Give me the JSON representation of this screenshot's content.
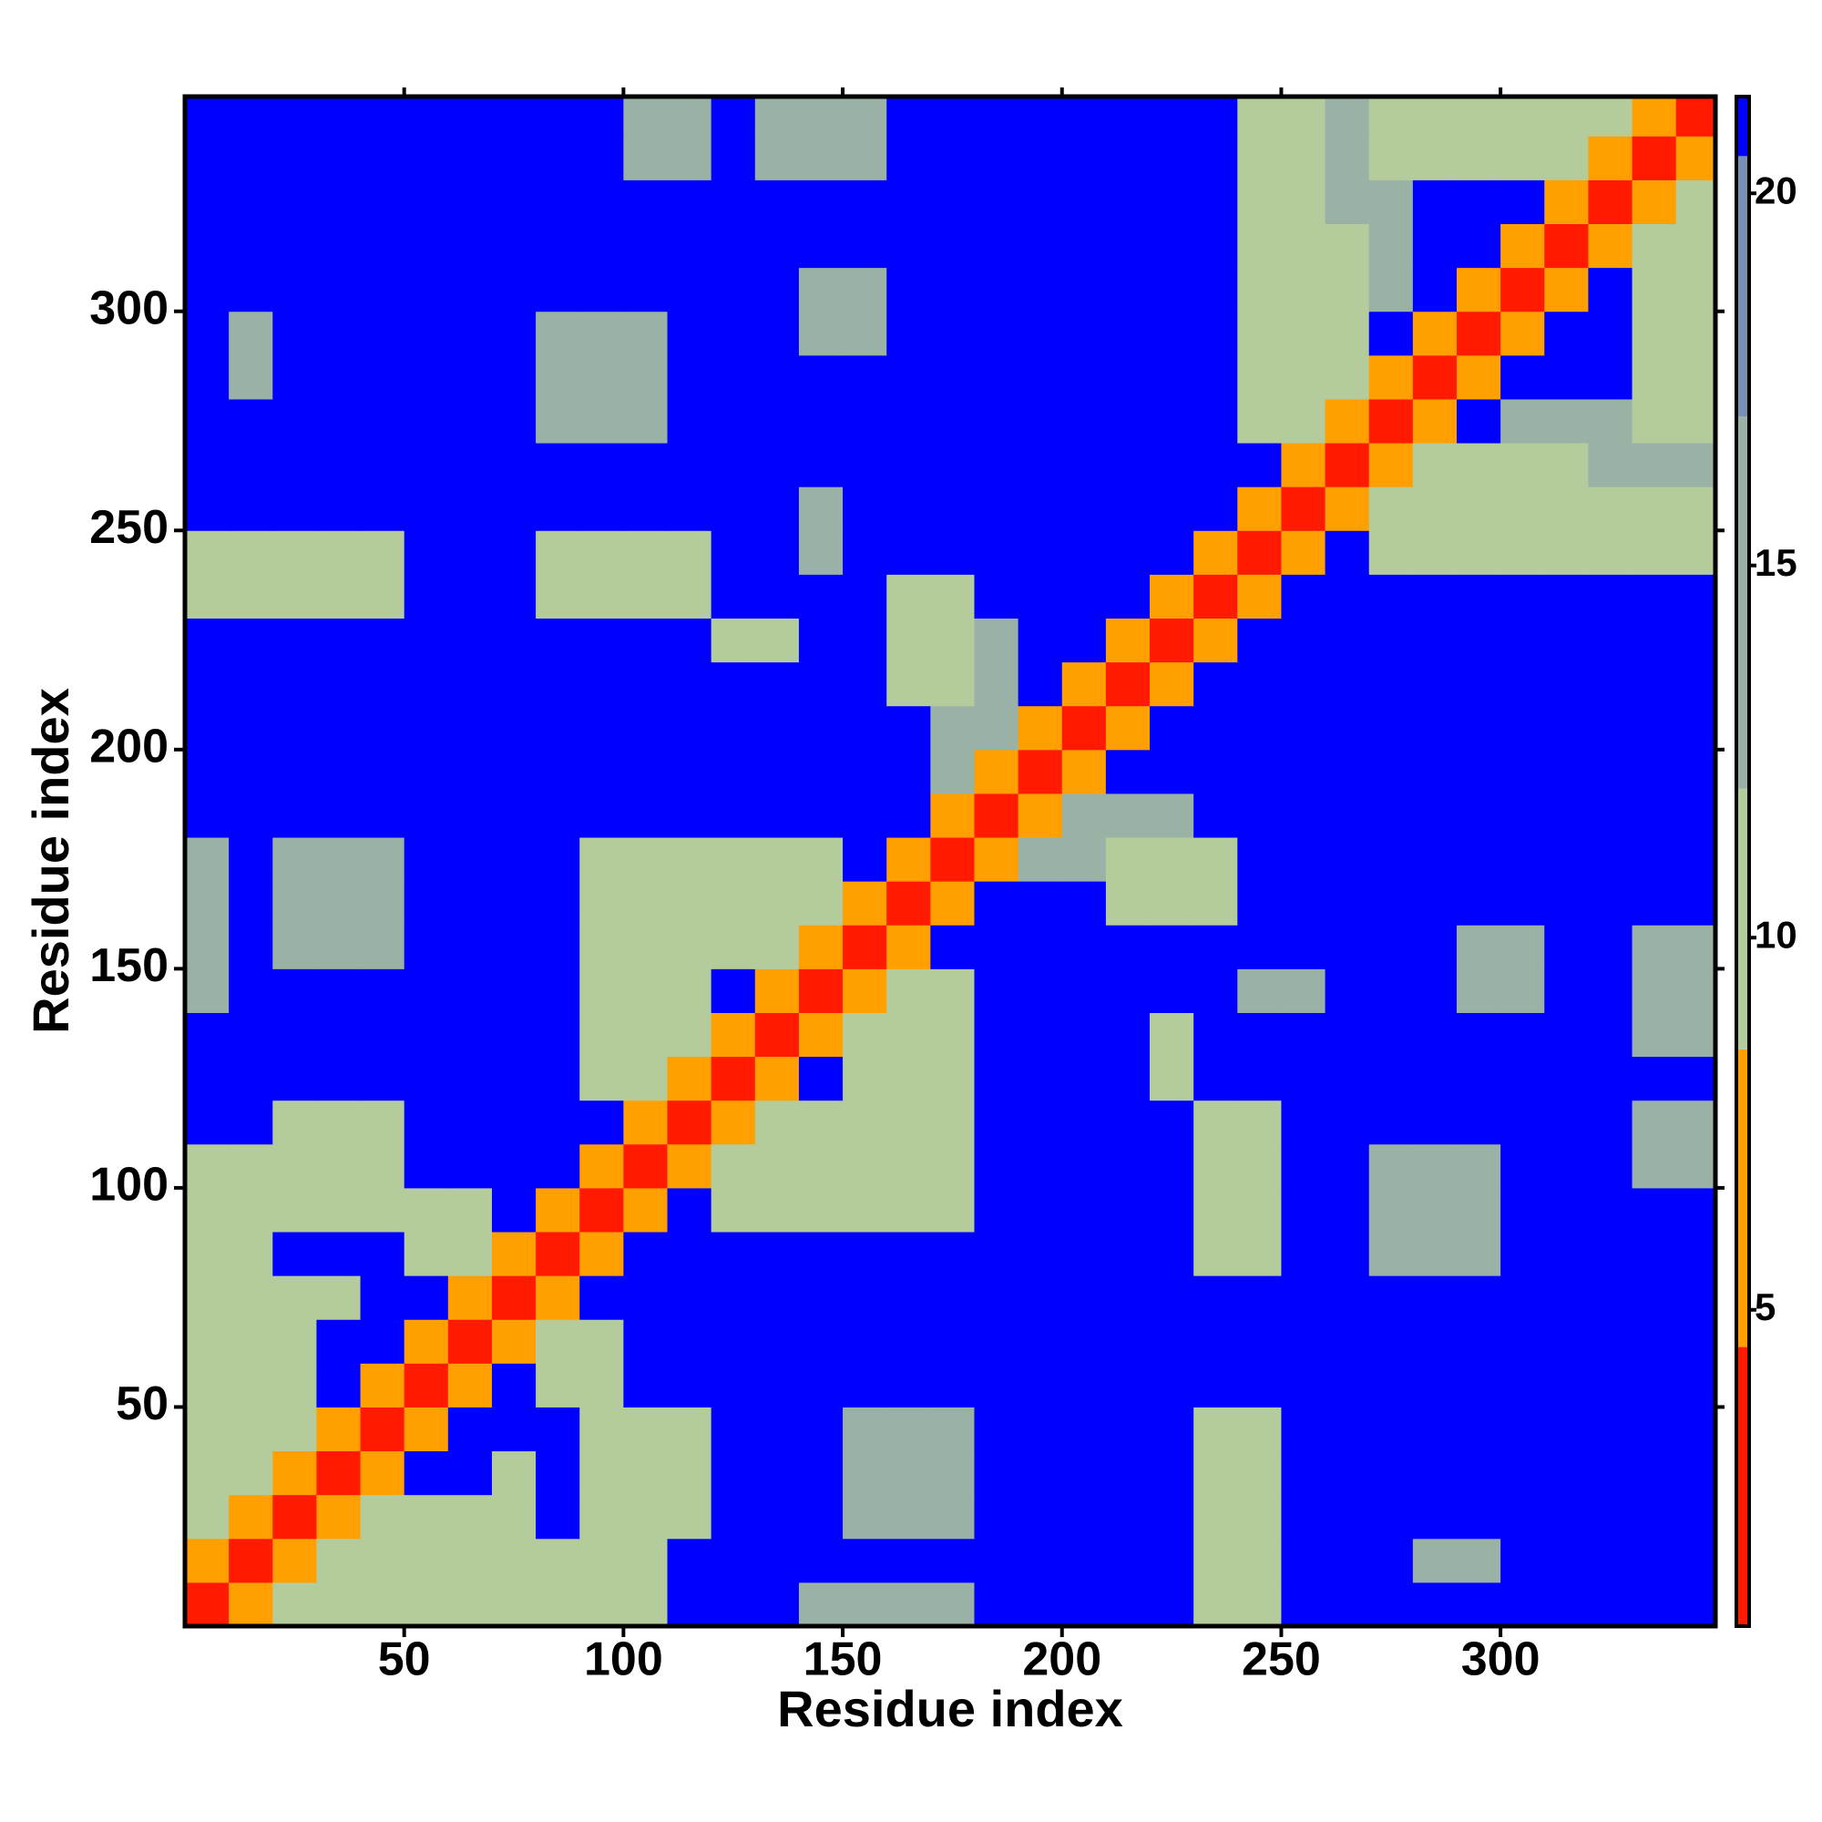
{
  "chart_data": {
    "type": "heatmap",
    "xlabel": "Residue index",
    "ylabel": "Residue index",
    "xlim": [
      0,
      349
    ],
    "ylim": [
      0,
      349
    ],
    "xticks": [
      50,
      100,
      150,
      200,
      250,
      300
    ],
    "yticks": [
      50,
      100,
      150,
      200,
      250,
      300
    ],
    "x": [
      0,
      10,
      20,
      30,
      40,
      50,
      60,
      70,
      80,
      90,
      100,
      110,
      120,
      130,
      140,
      150,
      160,
      170,
      180,
      190,
      200,
      210,
      220,
      230,
      240,
      250,
      260,
      270,
      280,
      290,
      300,
      310,
      320,
      330,
      340
    ],
    "y": [
      0,
      10,
      20,
      30,
      40,
      50,
      60,
      70,
      80,
      90,
      100,
      110,
      120,
      130,
      140,
      150,
      160,
      170,
      180,
      190,
      200,
      210,
      220,
      230,
      240,
      250,
      260,
      270,
      280,
      290,
      300,
      310,
      320,
      330,
      340
    ],
    "z": [
      [
        2,
        8,
        11,
        11,
        11,
        11,
        11,
        11,
        11,
        11,
        11,
        21,
        21,
        21,
        17,
        17,
        17,
        17,
        21,
        21,
        21,
        21,
        21,
        12,
        12,
        21,
        21,
        21,
        21,
        21,
        21,
        21,
        21,
        21,
        21
      ],
      [
        8,
        2,
        8,
        11,
        11,
        11,
        11,
        11,
        11,
        11,
        11,
        21,
        21,
        21,
        21,
        21,
        21,
        21,
        21,
        21,
        21,
        21,
        21,
        12,
        12,
        21,
        21,
        21,
        16,
        16,
        21,
        21,
        21,
        21,
        21
      ],
      [
        11,
        8,
        2,
        8,
        11,
        11,
        11,
        10,
        21,
        12,
        12,
        12,
        21,
        21,
        21,
        13,
        13,
        13,
        21,
        21,
        21,
        21,
        21,
        12,
        12,
        21,
        21,
        21,
        21,
        21,
        21,
        21,
        21,
        21,
        21
      ],
      [
        11,
        11,
        8,
        2,
        8,
        21,
        21,
        10,
        21,
        12,
        12,
        12,
        21,
        21,
        21,
        13,
        13,
        13,
        21,
        21,
        21,
        21,
        21,
        12,
        12,
        21,
        21,
        21,
        21,
        21,
        21,
        21,
        21,
        21,
        21
      ],
      [
        11,
        11,
        11,
        8,
        2,
        8,
        21,
        21,
        21,
        12,
        12,
        12,
        21,
        21,
        21,
        13,
        13,
        13,
        21,
        21,
        21,
        21,
        21,
        12,
        12,
        21,
        21,
        21,
        21,
        21,
        21,
        21,
        21,
        21,
        21
      ],
      [
        11,
        11,
        11,
        21,
        8,
        2,
        8,
        21,
        12,
        12,
        21,
        21,
        21,
        21,
        21,
        21,
        21,
        21,
        21,
        21,
        21,
        21,
        21,
        21,
        21,
        21,
        21,
        21,
        21,
        21,
        21,
        21,
        21,
        21,
        21
      ],
      [
        11,
        11,
        11,
        21,
        21,
        8,
        2,
        8,
        12,
        12,
        21,
        21,
        21,
        21,
        21,
        21,
        21,
        21,
        21,
        21,
        21,
        21,
        21,
        21,
        21,
        21,
        21,
        21,
        21,
        21,
        21,
        21,
        21,
        21,
        21
      ],
      [
        11,
        11,
        10,
        10,
        21,
        21,
        8,
        2,
        8,
        21,
        21,
        21,
        21,
        21,
        21,
        21,
        21,
        21,
        21,
        21,
        21,
        21,
        21,
        21,
        21,
        21,
        21,
        21,
        21,
        21,
        21,
        21,
        21,
        21,
        21
      ],
      [
        11,
        11,
        21,
        21,
        21,
        12,
        12,
        8,
        2,
        8,
        21,
        21,
        21,
        21,
        21,
        21,
        21,
        21,
        21,
        21,
        21,
        21,
        21,
        12,
        12,
        21,
        21,
        17,
        17,
        17,
        21,
        21,
        21,
        21,
        21
      ],
      [
        11,
        11,
        12,
        12,
        12,
        12,
        12,
        21,
        8,
        2,
        8,
        21,
        11,
        11,
        11,
        11,
        11,
        11,
        21,
        21,
        21,
        21,
        21,
        12,
        12,
        21,
        21,
        17,
        17,
        17,
        21,
        21,
        21,
        21,
        21
      ],
      [
        11,
        11,
        12,
        12,
        12,
        21,
        21,
        21,
        21,
        8,
        2,
        8,
        11,
        11,
        11,
        11,
        11,
        11,
        21,
        21,
        21,
        21,
        21,
        12,
        12,
        21,
        21,
        17,
        17,
        17,
        21,
        21,
        21,
        15,
        15
      ],
      [
        21,
        21,
        12,
        12,
        12,
        21,
        21,
        21,
        21,
        21,
        8,
        2,
        8,
        11,
        11,
        11,
        11,
        11,
        21,
        21,
        21,
        21,
        21,
        12,
        12,
        21,
        21,
        21,
        21,
        21,
        21,
        21,
        21,
        15,
        15
      ],
      [
        21,
        21,
        21,
        21,
        21,
        21,
        21,
        21,
        21,
        11,
        11,
        8,
        2,
        8,
        21,
        11,
        11,
        11,
        21,
        21,
        21,
        21,
        9,
        21,
        21,
        21,
        21,
        21,
        21,
        21,
        21,
        21,
        21,
        21,
        21
      ],
      [
        21,
        21,
        21,
        21,
        21,
        21,
        21,
        21,
        21,
        11,
        11,
        11,
        8,
        2,
        8,
        11,
        11,
        11,
        21,
        21,
        21,
        21,
        9,
        21,
        21,
        21,
        21,
        21,
        21,
        21,
        21,
        21,
        21,
        14,
        14
      ],
      [
        17,
        21,
        21,
        21,
        21,
        21,
        21,
        21,
        21,
        11,
        11,
        11,
        21,
        8,
        2,
        8,
        11,
        11,
        21,
        21,
        21,
        21,
        21,
        21,
        16,
        16,
        21,
        21,
        21,
        13,
        13,
        21,
        21,
        14,
        14
      ],
      [
        17,
        21,
        13,
        13,
        13,
        21,
        21,
        21,
        21,
        11,
        11,
        11,
        11,
        11,
        8,
        2,
        8,
        21,
        21,
        21,
        21,
        21,
        21,
        21,
        21,
        21,
        21,
        21,
        21,
        13,
        13,
        21,
        21,
        14,
        14
      ],
      [
        17,
        21,
        13,
        13,
        13,
        21,
        21,
        21,
        21,
        11,
        11,
        11,
        11,
        11,
        11,
        8,
        2,
        8,
        21,
        21,
        21,
        10,
        10,
        10,
        21,
        21,
        21,
        21,
        21,
        21,
        21,
        21,
        21,
        21,
        21
      ],
      [
        17,
        21,
        13,
        13,
        13,
        21,
        21,
        21,
        21,
        11,
        11,
        11,
        11,
        11,
        11,
        21,
        8,
        2,
        8,
        15,
        15,
        10,
        10,
        10,
        21,
        21,
        21,
        21,
        21,
        21,
        21,
        21,
        21,
        21,
        21
      ],
      [
        21,
        21,
        21,
        21,
        21,
        21,
        21,
        21,
        21,
        21,
        21,
        21,
        21,
        21,
        21,
        21,
        21,
        8,
        2,
        8,
        15,
        15,
        15,
        21,
        21,
        21,
        21,
        21,
        21,
        21,
        21,
        21,
        21,
        21,
        21
      ],
      [
        21,
        21,
        21,
        21,
        21,
        21,
        21,
        21,
        21,
        21,
        21,
        21,
        21,
        21,
        21,
        21,
        21,
        15,
        8,
        2,
        8,
        21,
        21,
        21,
        21,
        21,
        21,
        21,
        21,
        21,
        21,
        21,
        21,
        21,
        21
      ],
      [
        21,
        21,
        21,
        21,
        21,
        21,
        21,
        21,
        21,
        21,
        21,
        21,
        21,
        21,
        21,
        21,
        21,
        15,
        15,
        8,
        2,
        8,
        21,
        21,
        21,
        21,
        21,
        21,
        21,
        21,
        21,
        21,
        21,
        21,
        21
      ],
      [
        21,
        21,
        21,
        21,
        21,
        21,
        21,
        21,
        21,
        21,
        21,
        21,
        21,
        21,
        21,
        21,
        10,
        10,
        15,
        21,
        8,
        2,
        8,
        21,
        21,
        21,
        21,
        21,
        21,
        21,
        21,
        21,
        21,
        21,
        21
      ],
      [
        21,
        21,
        21,
        21,
        21,
        21,
        21,
        21,
        21,
        21,
        21,
        21,
        9,
        9,
        21,
        21,
        10,
        10,
        15,
        21,
        21,
        8,
        2,
        8,
        21,
        21,
        21,
        21,
        21,
        21,
        21,
        21,
        21,
        21,
        21
      ],
      [
        12,
        12,
        12,
        12,
        12,
        21,
        21,
        21,
        12,
        12,
        12,
        12,
        21,
        21,
        21,
        21,
        10,
        10,
        21,
        21,
        21,
        21,
        8,
        2,
        8,
        21,
        21,
        21,
        21,
        21,
        21,
        21,
        21,
        21,
        21
      ],
      [
        12,
        12,
        12,
        12,
        12,
        21,
        21,
        21,
        12,
        12,
        12,
        12,
        21,
        21,
        16,
        21,
        21,
        21,
        21,
        21,
        21,
        21,
        21,
        8,
        2,
        8,
        21,
        11,
        11,
        11,
        11,
        11,
        12,
        12,
        12
      ],
      [
        21,
        21,
        21,
        21,
        21,
        21,
        21,
        21,
        21,
        21,
        21,
        21,
        21,
        21,
        16,
        21,
        21,
        21,
        21,
        21,
        21,
        21,
        21,
        21,
        8,
        2,
        8,
        11,
        11,
        11,
        11,
        11,
        12,
        12,
        12
      ],
      [
        21,
        21,
        21,
        21,
        21,
        21,
        21,
        21,
        21,
        21,
        21,
        21,
        21,
        21,
        21,
        21,
        21,
        21,
        21,
        21,
        21,
        21,
        21,
        21,
        21,
        8,
        2,
        8,
        11,
        11,
        11,
        11,
        13,
        13,
        13
      ],
      [
        21,
        21,
        21,
        21,
        21,
        21,
        21,
        21,
        17,
        17,
        17,
        21,
        21,
        21,
        21,
        21,
        21,
        21,
        21,
        21,
        21,
        21,
        21,
        21,
        11,
        11,
        8,
        2,
        8,
        21,
        13,
        13,
        13,
        12,
        12
      ],
      [
        21,
        16,
        21,
        21,
        21,
        21,
        21,
        21,
        17,
        17,
        17,
        21,
        21,
        21,
        21,
        21,
        21,
        21,
        21,
        21,
        21,
        21,
        21,
        21,
        11,
        11,
        11,
        8,
        2,
        8,
        21,
        21,
        21,
        12,
        12
      ],
      [
        21,
        16,
        21,
        21,
        21,
        21,
        21,
        21,
        17,
        17,
        17,
        21,
        21,
        21,
        13,
        13,
        21,
        21,
        21,
        21,
        21,
        21,
        21,
        21,
        11,
        11,
        11,
        21,
        8,
        2,
        8,
        21,
        21,
        12,
        12
      ],
      [
        21,
        21,
        21,
        21,
        21,
        21,
        21,
        21,
        21,
        21,
        21,
        21,
        21,
        21,
        13,
        13,
        21,
        21,
        21,
        21,
        21,
        21,
        21,
        21,
        11,
        11,
        11,
        13,
        21,
        8,
        2,
        8,
        21,
        12,
        12
      ],
      [
        21,
        21,
        21,
        21,
        21,
        21,
        21,
        21,
        21,
        21,
        21,
        21,
        21,
        21,
        21,
        21,
        21,
        21,
        21,
        21,
        21,
        21,
        21,
        21,
        11,
        11,
        11,
        13,
        21,
        21,
        8,
        2,
        8,
        12,
        12
      ],
      [
        21,
        21,
        21,
        21,
        21,
        21,
        21,
        21,
        21,
        21,
        21,
        21,
        21,
        21,
        21,
        21,
        21,
        21,
        21,
        21,
        21,
        21,
        21,
        21,
        12,
        12,
        13,
        13,
        21,
        21,
        21,
        8,
        2,
        8,
        12
      ],
      [
        21,
        21,
        21,
        21,
        21,
        21,
        21,
        21,
        21,
        21,
        15,
        15,
        21,
        14,
        14,
        14,
        21,
        21,
        21,
        21,
        21,
        21,
        21,
        21,
        12,
        12,
        13,
        12,
        12,
        12,
        12,
        12,
        8,
        2,
        8
      ],
      [
        21,
        21,
        21,
        21,
        21,
        21,
        21,
        21,
        21,
        21,
        15,
        15,
        21,
        14,
        14,
        14,
        21,
        21,
        21,
        21,
        21,
        21,
        21,
        21,
        12,
        12,
        13,
        12,
        12,
        12,
        12,
        12,
        12,
        8,
        2
      ]
    ],
    "colorscale": [
      {
        "value": 4.5,
        "color": "#ff1a00"
      },
      {
        "value": 8.5,
        "color": "#ffa000"
      },
      {
        "value": 12,
        "color": "#b4cc9c"
      },
      {
        "value": 17,
        "color": "#9ab2a6"
      },
      {
        "value": 20.5,
        "color": "#7890b4"
      },
      {
        "value": 21.3,
        "color": "#0000ff"
      }
    ],
    "colorbar": {
      "lim": [
        0.75,
        21.3
      ],
      "ticks": [
        5,
        10,
        15,
        20
      ]
    }
  }
}
